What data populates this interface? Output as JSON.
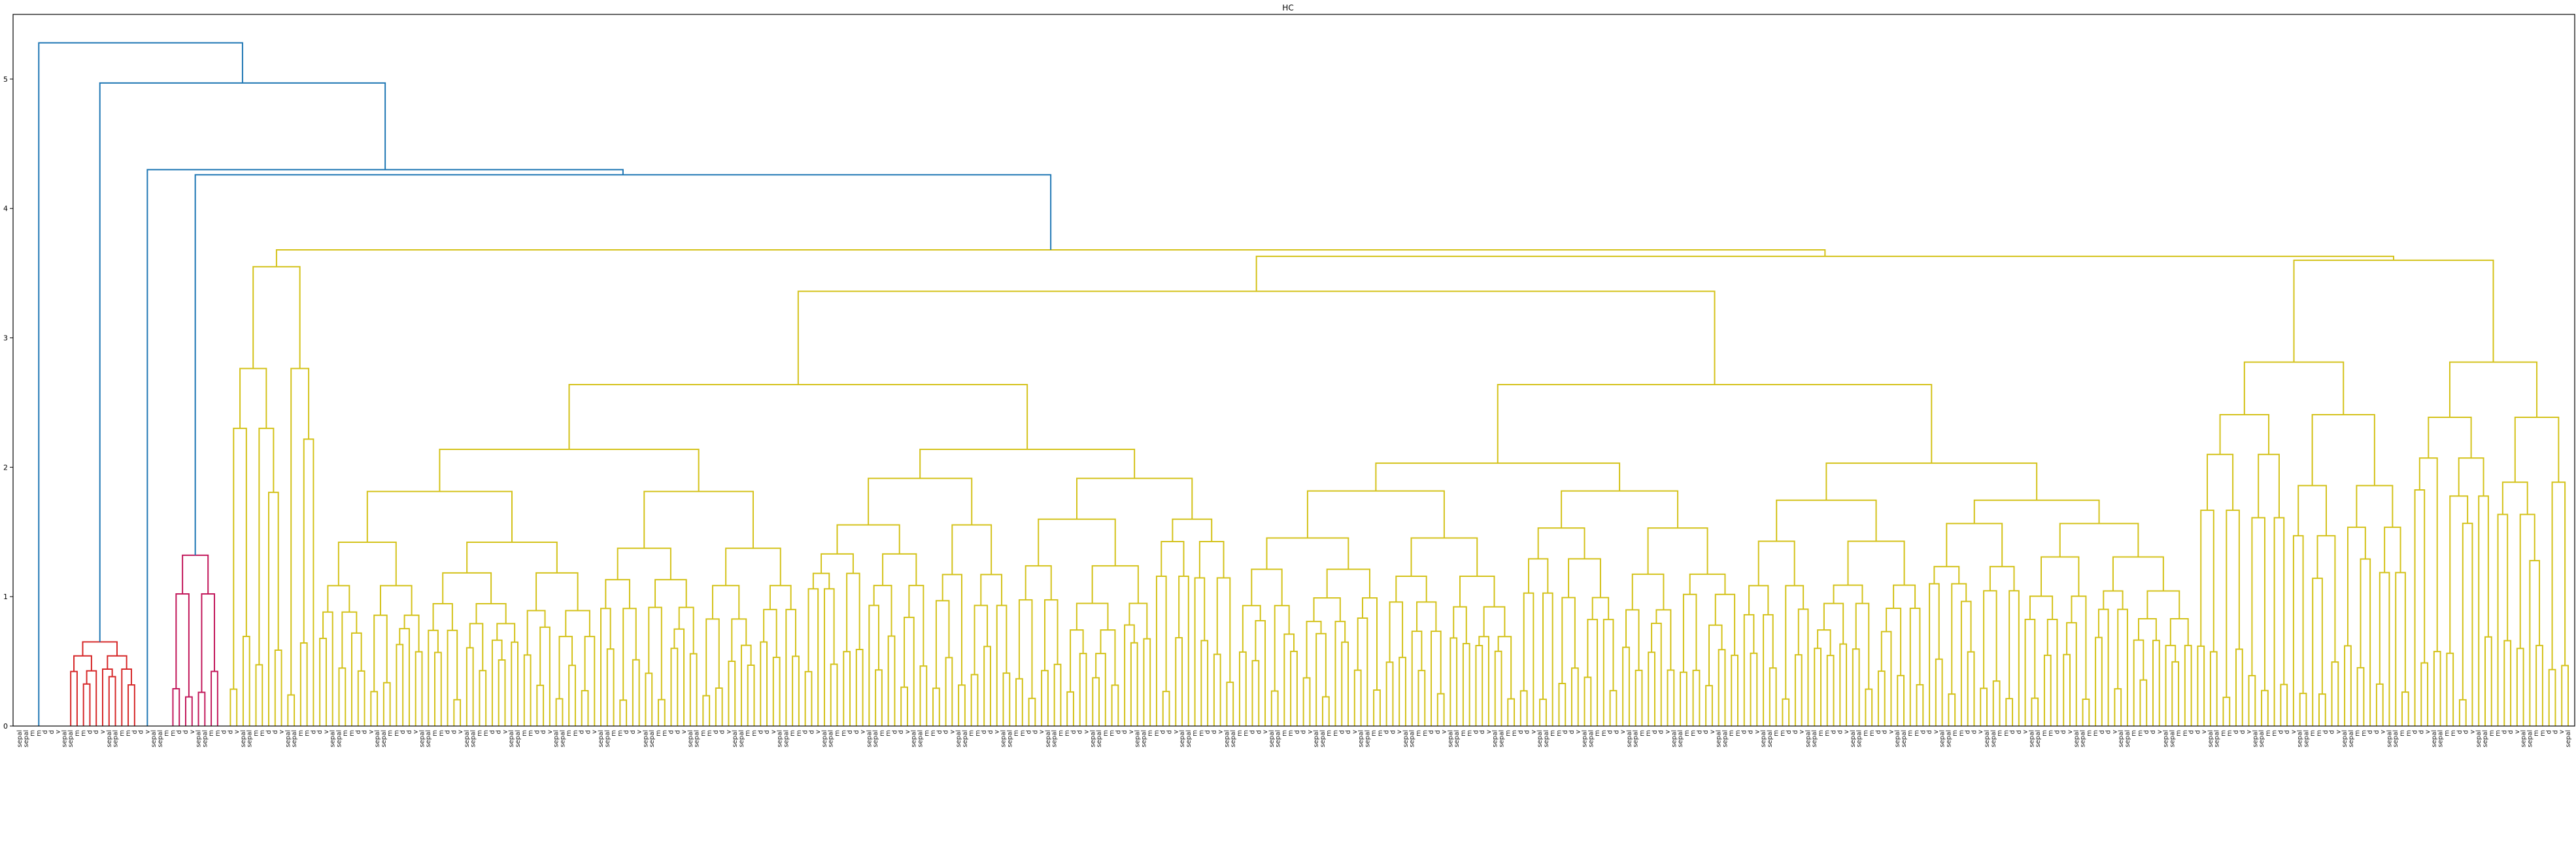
{
  "chart_data": {
    "type": "dendrogram",
    "title": "HC",
    "xlabel": "",
    "ylabel": "",
    "ylim": [
      0,
      5.5
    ],
    "yticks": [
      "0",
      "1",
      "2",
      "3",
      "4",
      "5"
    ],
    "grid": false,
    "colors": {
      "above_threshold": "#1f77b4",
      "cluster_red": "#d62728",
      "cluster_magenta": "#c2185b",
      "cluster_yellow": "#d4c21a"
    },
    "merge_heights": {
      "root": 5.28,
      "level2": 4.97,
      "level3": 4.3,
      "level4": 4.26,
      "red_cluster": 0.65,
      "magenta_cluster": 1.32,
      "yellow_top": 3.63,
      "yellow_right": 3.6,
      "yellow_mid": 3.36,
      "yellow_inner": [
        3.12,
        2.75,
        2.58,
        2.45,
        2.38,
        2.15,
        2.05,
        1.98,
        1.92,
        1.88,
        1.75,
        1.62
      ],
      "right_group": [
        3.42,
        2.92,
        2.65,
        2.45,
        1.78,
        1.6,
        1.5,
        0.8,
        0.78
      ]
    },
    "leaf_count": 400,
    "leaf_labels_legible": [
      "sepal",
      "sepal",
      "m",
      "m",
      "d",
      "d",
      "v"
    ]
  }
}
